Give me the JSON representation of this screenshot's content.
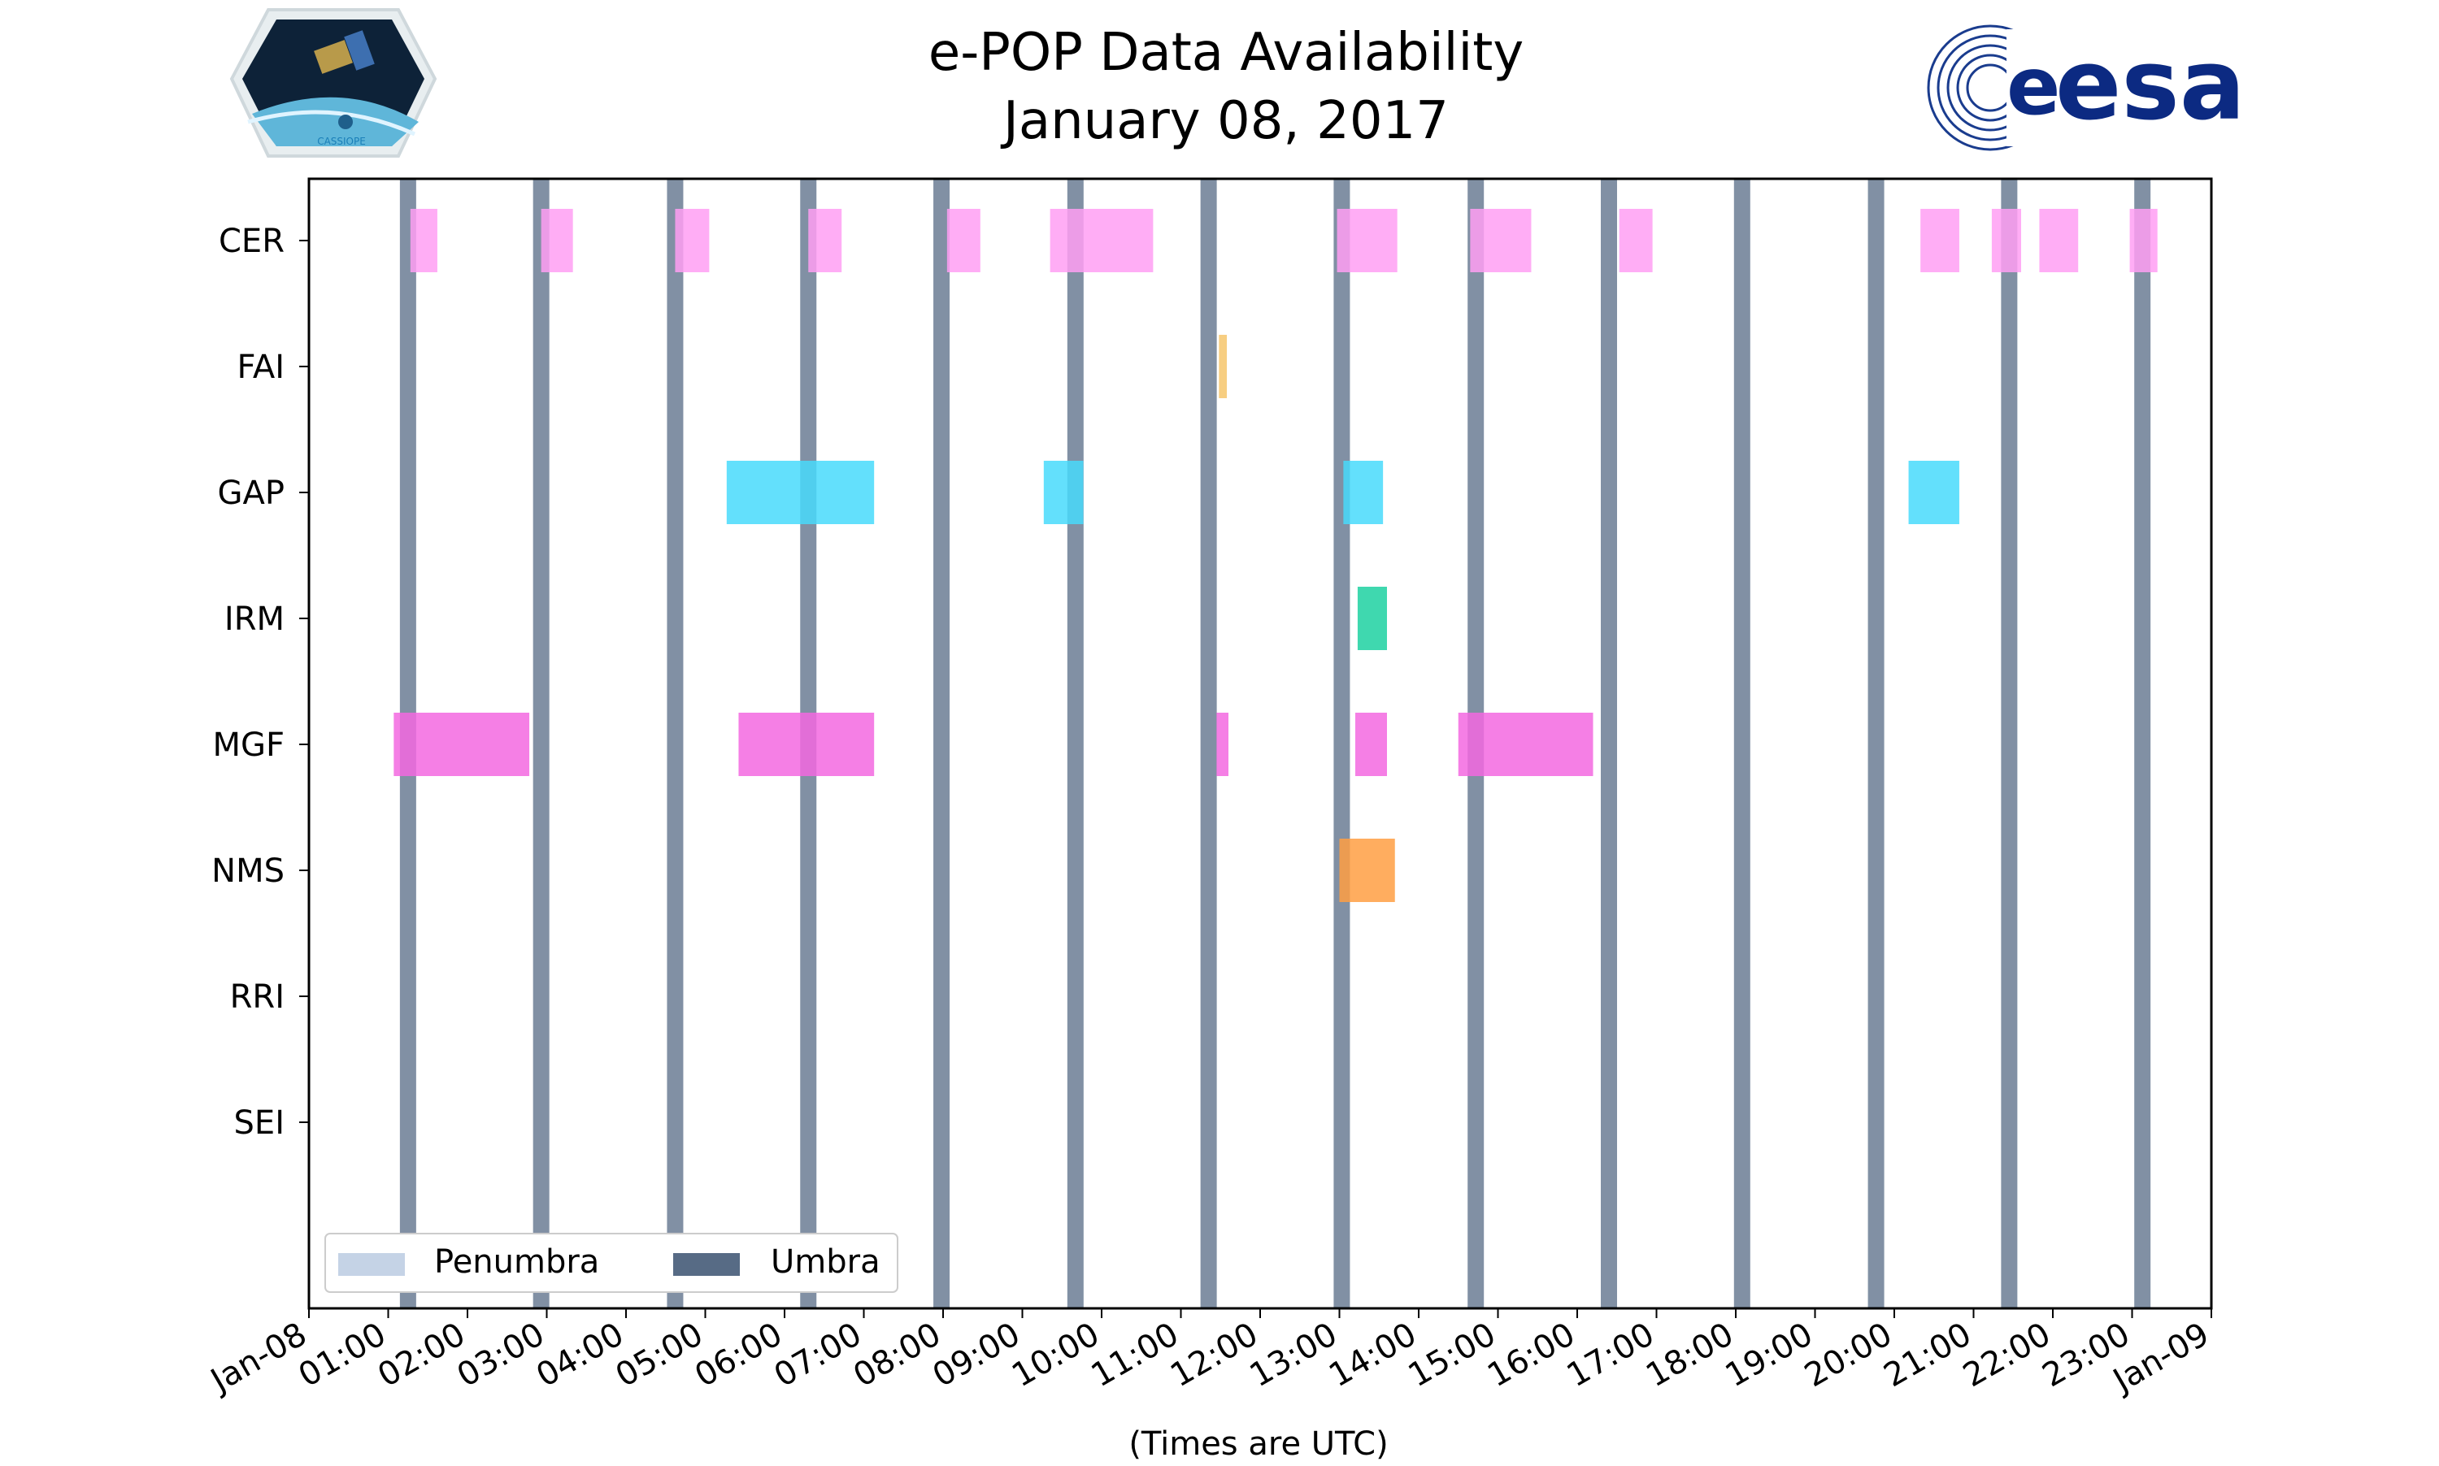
{
  "chart_data": {
    "type": "timeline",
    "title": "e-POP Data Availability",
    "subtitle": "January 08, 2017",
    "xlabel": "(Times are UTC)",
    "xlim_hours": [
      0,
      24
    ],
    "x_tick_labels": [
      "Jan-08",
      "01:00",
      "02:00",
      "03:00",
      "04:00",
      "05:00",
      "06:00",
      "07:00",
      "08:00",
      "09:00",
      "10:00",
      "11:00",
      "12:00",
      "13:00",
      "14:00",
      "15:00",
      "16:00",
      "17:00",
      "18:00",
      "19:00",
      "20:00",
      "21:00",
      "22:00",
      "23:00",
      "Jan-09"
    ],
    "instruments": [
      "CER",
      "FAI",
      "GAP",
      "IRM",
      "MGF",
      "NMS",
      "RRI",
      "SEI"
    ],
    "colors": {
      "CER": "#ff9ff3",
      "FAI": "#f6c56b",
      "GAP": "#48dbfb",
      "IRM": "#1dd1a1",
      "MGF": "#f368e0",
      "NMS": "#ff9f43",
      "umbra": "#576b85",
      "penumbra": "#c5d3e6"
    },
    "intervals": {
      "CER": [
        [
          1.28,
          1.62
        ],
        [
          2.93,
          3.33
        ],
        [
          4.62,
          5.05
        ],
        [
          6.3,
          6.72
        ],
        [
          8.05,
          8.47
        ],
        [
          9.35,
          10.65
        ],
        [
          12.97,
          13.73
        ],
        [
          14.65,
          15.42
        ],
        [
          16.53,
          16.95
        ],
        [
          20.33,
          20.82
        ],
        [
          21.23,
          21.6
        ],
        [
          21.83,
          22.32
        ],
        [
          22.97,
          23.32
        ]
      ],
      "FAI": [
        [
          11.48,
          11.58
        ]
      ],
      "GAP": [
        [
          5.27,
          7.13
        ],
        [
          9.27,
          9.77
        ],
        [
          13.05,
          13.55
        ]
      ],
      "IRM": [
        [
          13.23,
          13.6
        ]
      ],
      "MGF": [
        [
          1.07,
          2.78
        ],
        [
          5.42,
          7.13
        ],
        [
          11.45,
          11.6
        ],
        [
          13.2,
          13.6
        ],
        [
          14.5,
          16.2
        ]
      ],
      "NMS": [
        [
          13.0,
          13.7
        ]
      ],
      "RRI": [],
      "SEI": []
    },
    "gap_late": [
      [
        20.18,
        20.82
      ]
    ],
    "umbra_centers": [
      1.25,
      2.93,
      4.62,
      6.3,
      7.98,
      9.67,
      11.35,
      13.03,
      14.72,
      16.4,
      18.08,
      19.77,
      21.45,
      23.13
    ],
    "legend": {
      "position": "lower-left",
      "entries": [
        "Penumbra",
        "Umbra"
      ]
    }
  }
}
